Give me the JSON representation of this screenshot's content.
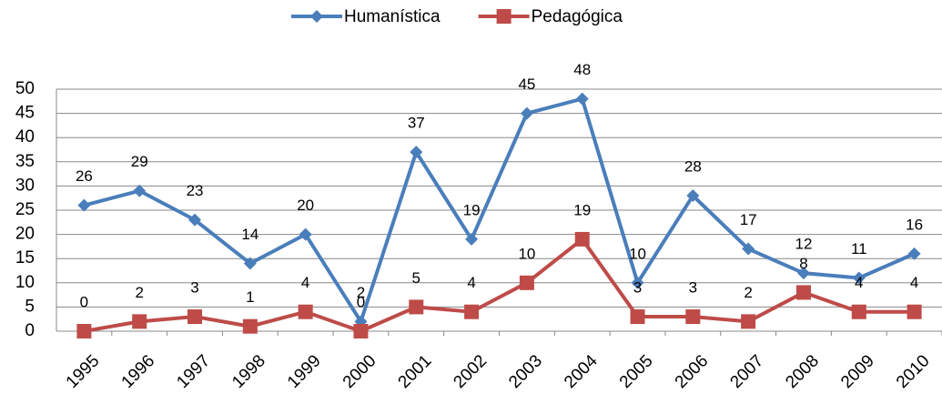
{
  "chart_data": {
    "type": "line",
    "categories": [
      "1995",
      "1996",
      "1997",
      "1998",
      "1999",
      "2000",
      "2001",
      "2002",
      "2003",
      "2004",
      "2005",
      "2006",
      "2007",
      "2008",
      "2009",
      "2010"
    ],
    "series": [
      {
        "name": "Humanística",
        "color": "#4a7ebb",
        "marker": "diamond",
        "values": [
          26,
          29,
          23,
          14,
          20,
          2,
          37,
          19,
          45,
          48,
          10,
          28,
          17,
          12,
          11,
          16
        ]
      },
      {
        "name": "Pedagógica",
        "color": "#be4b48",
        "marker": "square",
        "values": [
          0,
          2,
          3,
          1,
          4,
          0,
          5,
          4,
          10,
          19,
          3,
          3,
          2,
          8,
          4,
          4
        ]
      }
    ],
    "ylim": [
      0,
      50
    ],
    "yticks": [
      0,
      5,
      10,
      15,
      20,
      25,
      30,
      35,
      40,
      45,
      50
    ],
    "grid": true,
    "legend": "top"
  }
}
